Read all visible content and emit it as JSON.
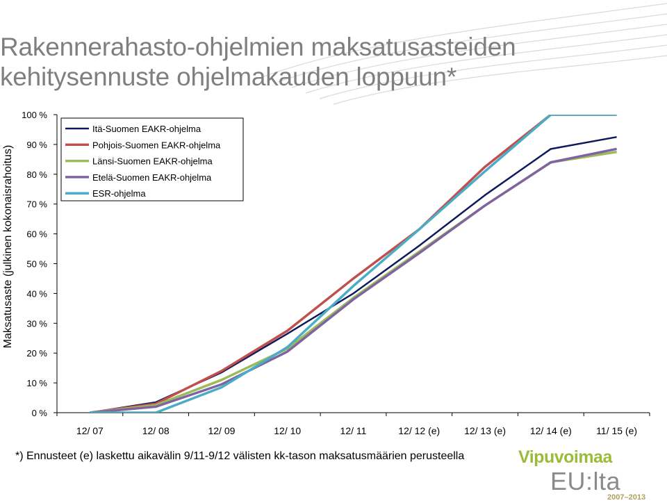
{
  "title_lines": [
    "Rakennerahasto-ohjelmien maksatusasteiden",
    "kehitysennuste ohjelmakauden loppuun*"
  ],
  "footnote": "*) Ennusteet (e) laskettu aikavälin 9/11-9/12 välisten kk-tason maksatusmäärien perusteella",
  "logo": {
    "name": "Vipuvoimaa",
    "sub": "EU:lta",
    "years": "2007–2013"
  },
  "colors": {
    "title": "#7f7f7f",
    "ita": "#0d1a5c",
    "pohjois": "#c0504d",
    "lansi": "#9bbb59",
    "etela": "#8064a2",
    "esr": "#4bacc6"
  },
  "chart_data": {
    "type": "line",
    "ylabel": "Maksatusaste (julkinen kokonaisrahoitus)",
    "xlabel": "",
    "categories": [
      "12/ 07",
      "12/ 08",
      "12/ 09",
      "12/ 10",
      "12/ 11",
      "12/ 12 (e)",
      "12/ 13 (e)",
      "12/ 14 (e)",
      "11/ 15 (e)"
    ],
    "y_ticks": [
      "0 %",
      "10 %",
      "20 %",
      "30 %",
      "40 %",
      "50 %",
      "60 %",
      "70 %",
      "80 %",
      "90 %",
      "100 %"
    ],
    "ylim": [
      0,
      100
    ],
    "grid": false,
    "legend_position": "top-left",
    "series": [
      {
        "name": "Itä-Suomen EAKR-ohjelma",
        "color": "#0d1a5c",
        "values": [
          0,
          3.5,
          13.5,
          26.5,
          40,
          56,
          73,
          88.5,
          92.5
        ]
      },
      {
        "name": "Pohjois-Suomen EAKR-ohjelma",
        "color": "#c0504d",
        "values": [
          0,
          3,
          14,
          27.5,
          45,
          61.5,
          82.5,
          100,
          100
        ]
      },
      {
        "name": "Länsi-Suomen EAKR-ohjelma",
        "color": "#9bbb59",
        "values": [
          0,
          2.5,
          11,
          21.5,
          38.5,
          54,
          69.5,
          84,
          87.5
        ]
      },
      {
        "name": "Etelä-Suomen EAKR-ohjelma",
        "color": "#8064a2",
        "values": [
          0,
          2,
          9.5,
          20.5,
          38,
          53.5,
          69.5,
          84,
          88.5
        ]
      },
      {
        "name": "ESR-ohjelma",
        "color": "#4bacc6",
        "values": [
          0,
          0,
          8.5,
          22,
          42.5,
          61.5,
          81,
          100,
          100
        ]
      }
    ]
  }
}
